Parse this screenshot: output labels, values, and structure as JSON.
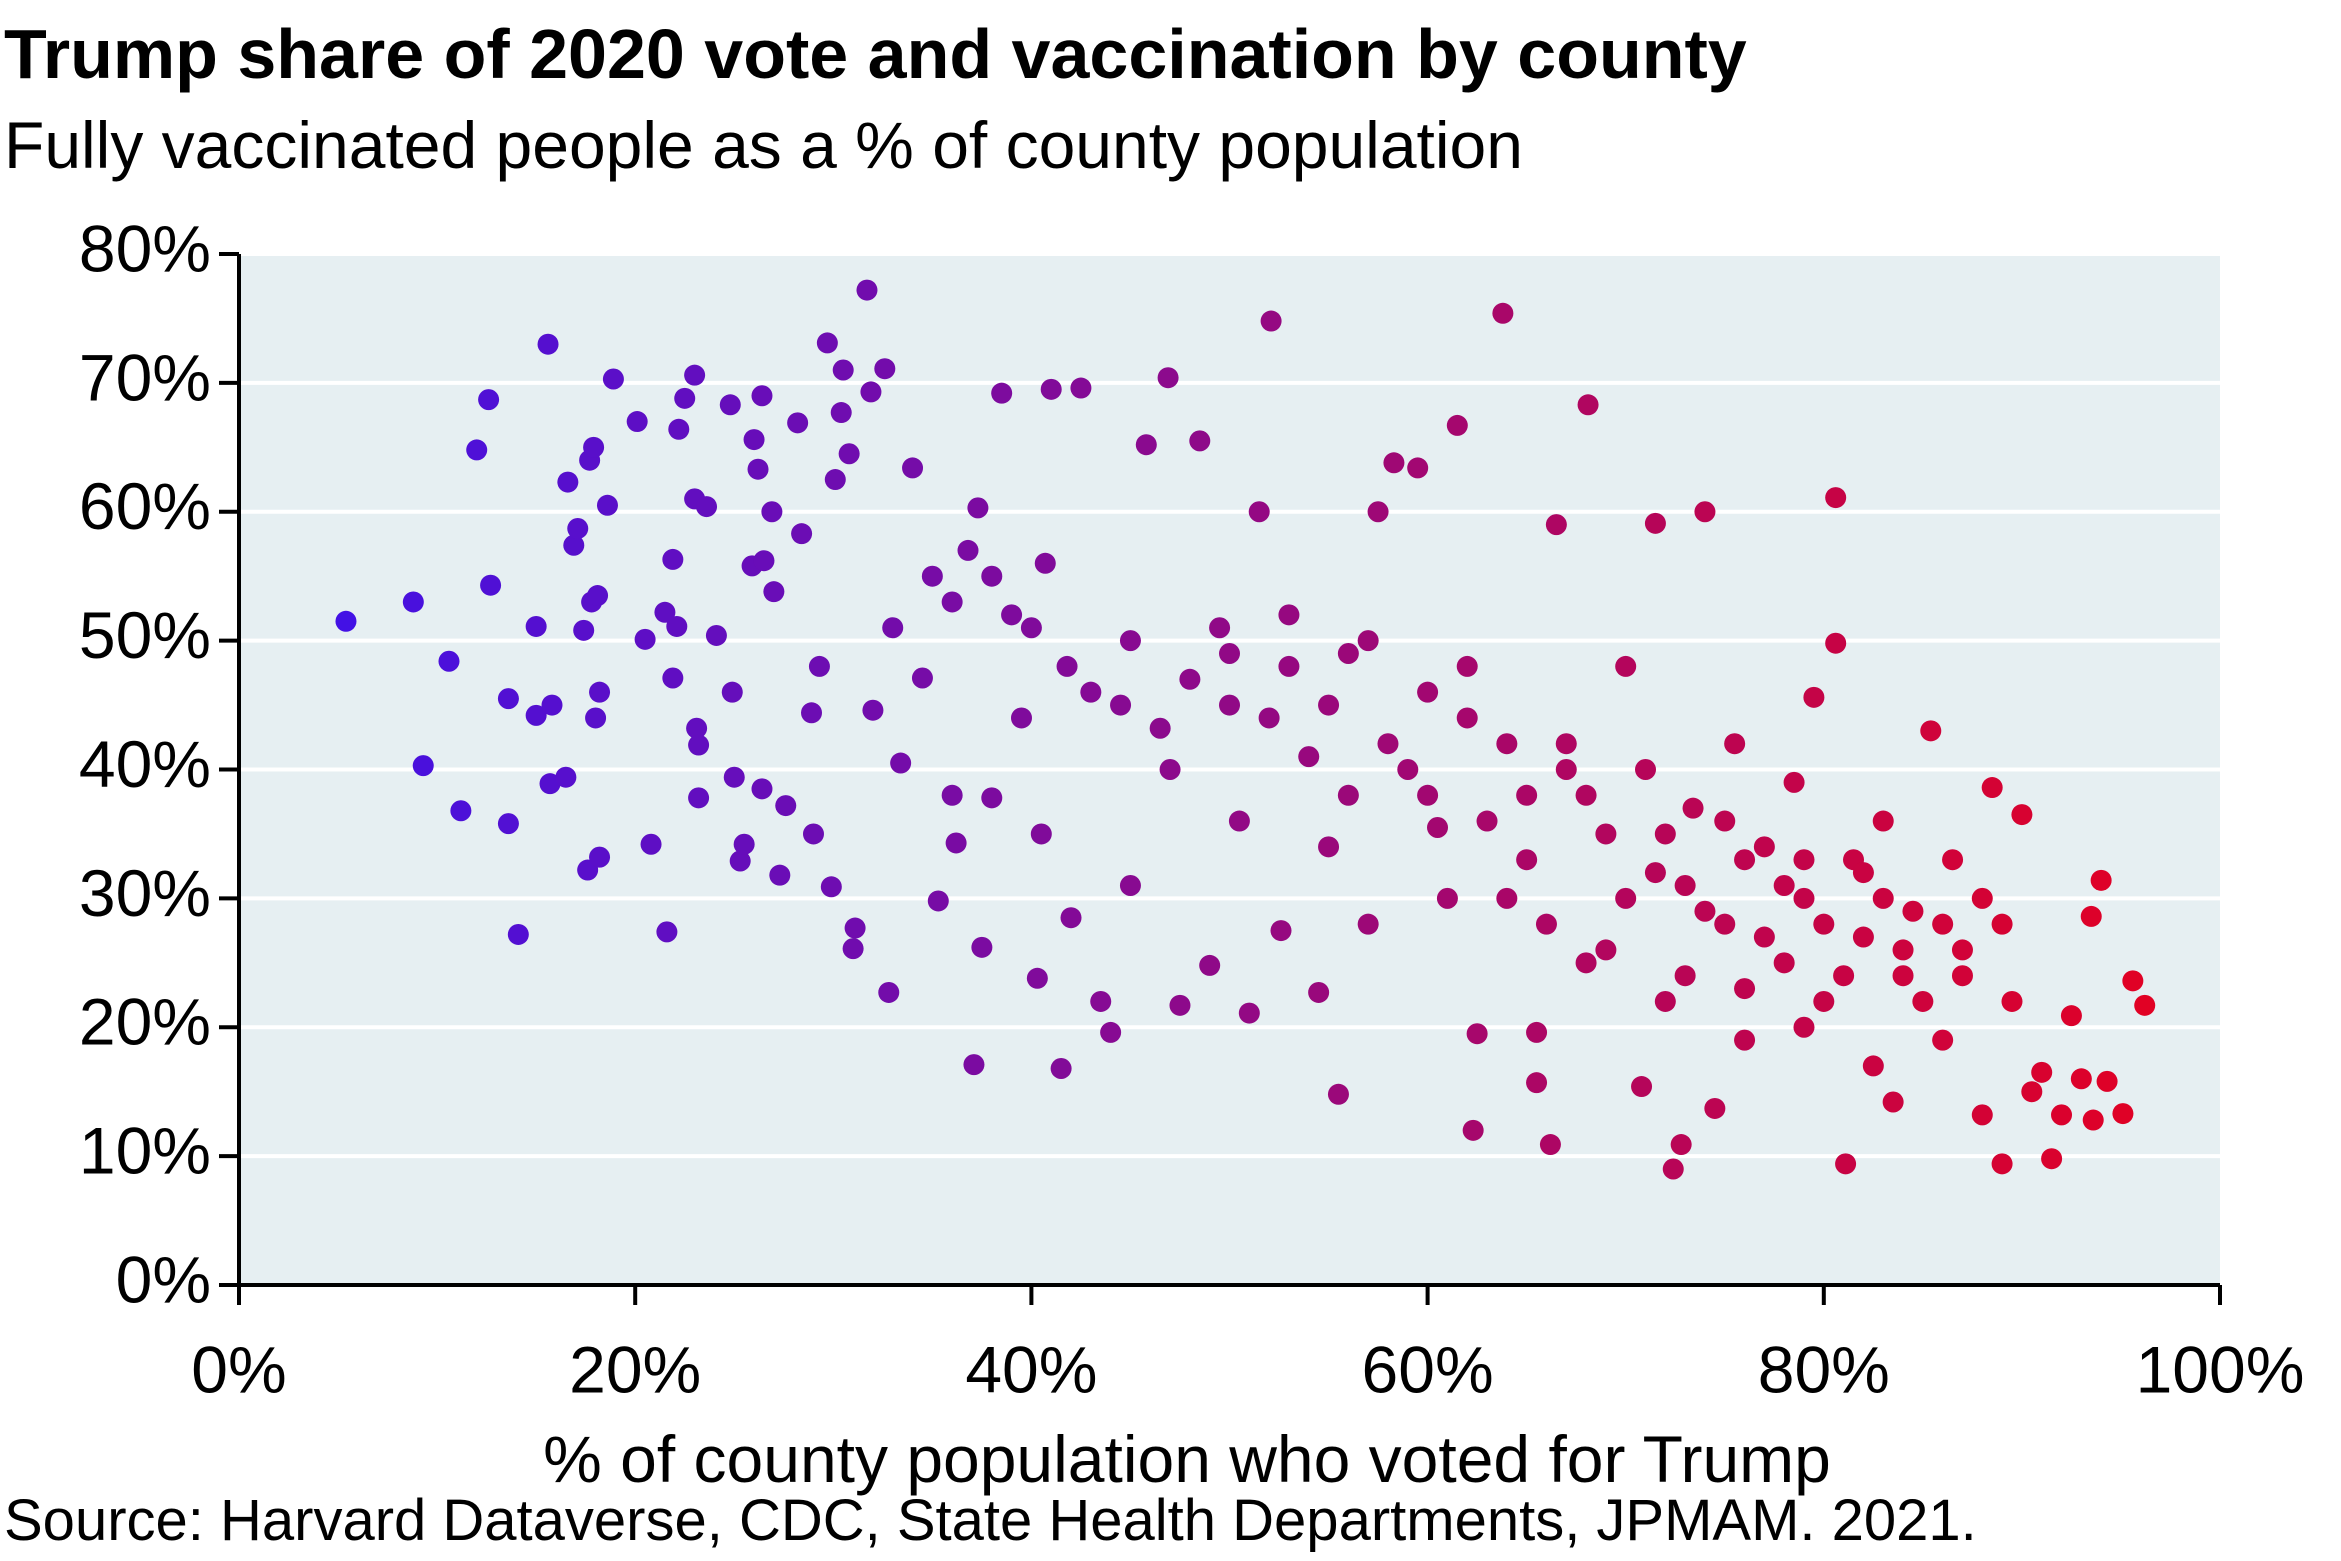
{
  "chart_data": {
    "type": "scatter",
    "title": "Trump share of 2020 vote and vaccination by county",
    "subtitle": "Fully vaccinated people as a % of county population",
    "x_label": "% of county population who voted for Trump",
    "source": "Source: Harvard Dataverse, CDC, State Health Departments, JPMAM. 2021.",
    "color_scale": [
      "#3a12f0",
      "#e8001c"
    ],
    "background": "#e6eff2",
    "grid": true,
    "xlim": [
      0,
      100
    ],
    "ylim": [
      0,
      80
    ],
    "xticks": [
      {
        "value": 0,
        "label": "0%"
      },
      {
        "value": 20,
        "label": "20%"
      },
      {
        "value": 40,
        "label": "40%"
      },
      {
        "value": 60,
        "label": "60%"
      },
      {
        "value": 80,
        "label": "80%"
      },
      {
        "value": 100,
        "label": "100%"
      }
    ],
    "yticks": [
      {
        "value": 0,
        "label": "0%"
      },
      {
        "value": 10,
        "label": "10%"
      },
      {
        "value": 20,
        "label": "20%"
      },
      {
        "value": 30,
        "label": "30%"
      },
      {
        "value": 40,
        "label": "40%"
      },
      {
        "value": 50,
        "label": "50%"
      },
      {
        "value": 60,
        "label": "60%"
      },
      {
        "value": 70,
        "label": "70%"
      },
      {
        "value": 80,
        "label": "80%"
      }
    ],
    "x": [
      5.4,
      8.8,
      9.3,
      10.6,
      11.2,
      12,
      12.6,
      12.7,
      13.6,
      13.6,
      14.1,
      15,
      15,
      15.6,
      15.8,
      15.7,
      16.5,
      16.6,
      16.9,
      17.1,
      17.4,
      17.6,
      17.7,
      17.8,
      17.9,
      18,
      18.2,
      18.2,
      18.1,
      18.6,
      18.9,
      20.1,
      20.5,
      20.8,
      21.5,
      21.6,
      21.9,
      21.9,
      22.1,
      22.2,
      22.5,
      23,
      23,
      23.1,
      23.2,
      23.2,
      23.6,
      24.1,
      24.8,
      24.9,
      25,
      25.3,
      25.5,
      25.9,
      26,
      26.2,
      26.4,
      26.4,
      26.5,
      26.9,
      27,
      27.3,
      27.6,
      28.2,
      28.4,
      28.9,
      29,
      29.3,
      29.7,
      29.9,
      30.1,
      30.4,
      30.5,
      30.8,
      31,
      31.1,
      31.7,
      31.9,
      32,
      32.6,
      32.8,
      33,
      33.4,
      34,
      34.5,
      35,
      35.3,
      36.2,
      36,
      36.8,
      37.1,
      37.3,
      37.5,
      38,
      38.5,
      39,
      39.5,
      40.3,
      40.5,
      40.7,
      41,
      41.5,
      41.8,
      42.5,
      42,
      43.5,
      44,
      44.5,
      45,
      45.8,
      46.5,
      46.9,
      47.5,
      48.5,
      49,
      49.5,
      50,
      50.5,
      51,
      51.5,
      52.1,
      52.6,
      53,
      54,
      54.5,
      55,
      55.5,
      56,
      57,
      57.5,
      58.3,
      59,
      59.5,
      60,
      60.5,
      61.5,
      62,
      62.3,
      62.5,
      63.8,
      64,
      65,
      65.5,
      65.5,
      66.2,
      66.5,
      67,
      68,
      68.1,
      69,
      70,
      70.8,
      71.5,
      71.5,
      72,
      72.4,
      72.8,
      73.4,
      74,
      74.5,
      75,
      75.5,
      76,
      77,
      78,
      78.5,
      79,
      79.5,
      80,
      80.6,
      80.6,
      81.1,
      81.5,
      82,
      82.5,
      83,
      83.5,
      84,
      84.5,
      85.4,
      86,
      86.5,
      87,
      88,
      88.5,
      89,
      89.5,
      90,
      90.5,
      91,
      91.5,
      92,
      92.5,
      93,
      93.5,
      93.6,
      94,
      94.3,
      95.1,
      95.6,
      96.2,
      55,
      58,
      60,
      63,
      65,
      67,
      70,
      72,
      74,
      76,
      78,
      80,
      82,
      84,
      86,
      88,
      62,
      64,
      68,
      71,
      73,
      75,
      77,
      79,
      81,
      83,
      85,
      87,
      89,
      57,
      53,
      50,
      48,
      45,
      43,
      40,
      38,
      36,
      47,
      52,
      56,
      61,
      66,
      69,
      73,
      76,
      79
    ],
    "values": [
      51.5,
      53,
      40.3,
      48.4,
      36.8,
      64.8,
      68.7,
      54.3,
      35.8,
      45.5,
      27.2,
      44.2,
      51.1,
      73,
      45,
      38.9,
      39.4,
      62.3,
      57.4,
      58.7,
      50.8,
      32.2,
      64,
      53,
      65,
      44,
      46,
      33.2,
      53.5,
      60.5,
      70.3,
      67,
      50.1,
      34.2,
      52.2,
      27.4,
      47.1,
      56.3,
      51.1,
      66.4,
      68.8,
      70.6,
      61,
      43.2,
      41.9,
      37.8,
      60.4,
      50.4,
      68.3,
      46,
      39.4,
      32.9,
      34.2,
      55.8,
      65.6,
      63.3,
      69,
      38.5,
      56.2,
      60,
      53.8,
      31.8,
      37.2,
      66.9,
      58.3,
      44.4,
      35,
      48,
      73.1,
      30.9,
      62.5,
      67.7,
      71,
      64.5,
      26.1,
      27.7,
      77.2,
      69.3,
      44.6,
      71.1,
      22.7,
      51,
      40.5,
      63.4,
      47.1,
      55,
      29.8,
      34.3,
      38,
      57,
      17.1,
      60.3,
      26.2,
      37.8,
      69.2,
      52,
      44,
      23.8,
      35,
      56,
      69.5,
      16.8,
      48,
      69.6,
      28.5,
      22,
      19.6,
      45,
      31,
      65.2,
      43.2,
      70.4,
      21.7,
      65.5,
      24.8,
      51,
      45,
      36,
      21.1,
      60,
      74.8,
      27.5,
      48,
      41,
      22.7,
      34,
      14.8,
      49,
      28,
      60,
      63.8,
      40,
      63.4,
      46,
      35.5,
      66.7,
      44,
      12,
      19.5,
      75.4,
      30,
      38,
      19.6,
      15.7,
      10.9,
      59,
      42,
      25,
      68.3,
      35,
      48,
      15.4,
      59.1,
      32,
      22,
      9,
      10.9,
      37,
      60,
      13.7,
      28,
      42,
      19,
      34,
      25,
      39,
      30,
      45.6,
      22,
      61.1,
      49.8,
      9.4,
      33,
      27,
      17,
      36,
      14.2,
      24,
      29,
      43,
      19,
      33,
      26,
      13.2,
      38.6,
      9.4,
      22,
      36.5,
      15,
      16.5,
      9.8,
      13.2,
      20.9,
      16,
      28.6,
      12.8,
      31.4,
      15.8,
      13.3,
      23.6,
      21.7,
      45,
      42,
      38,
      36,
      33,
      40,
      30,
      35,
      29,
      33,
      31,
      28,
      32,
      26,
      28,
      30,
      48,
      42,
      38,
      40,
      31,
      36,
      27,
      33,
      24,
      30,
      22,
      24,
      28,
      50,
      52,
      49,
      47,
      50,
      46,
      51,
      55,
      53,
      40,
      44,
      38,
      30,
      28,
      26,
      24,
      23,
      20
    ]
  }
}
